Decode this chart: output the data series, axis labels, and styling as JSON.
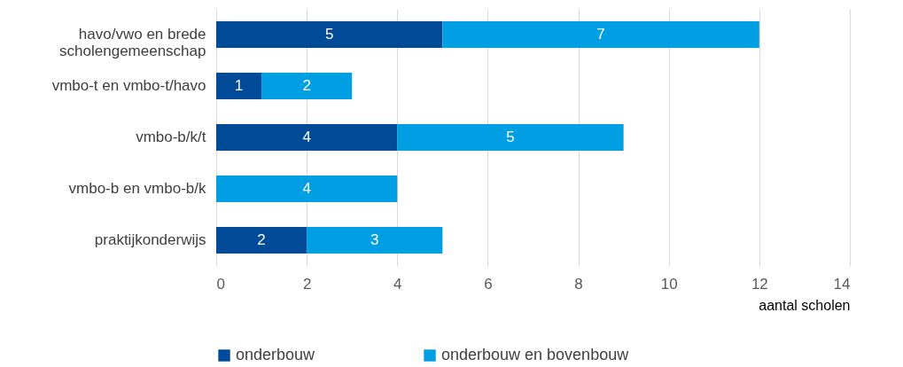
{
  "chart_data": {
    "type": "bar",
    "orientation": "horizontal",
    "stacked": true,
    "categories": [
      "havo/vwo en brede scholengemeenschap",
      "vmbo-t en vmbo-t/havo",
      "vmbo-b/k/t",
      "vmbo-b en vmbo-b/k",
      "praktijkonderwijs"
    ],
    "series": [
      {
        "name": "onderbouw",
        "color": "#004a98",
        "values": [
          5,
          1,
          4,
          null,
          2
        ]
      },
      {
        "name": "onderbouw en bovenbouw",
        "color": "#009fe3",
        "values": [
          7,
          2,
          5,
          4,
          3
        ]
      }
    ],
    "xlim": [
      0,
      14
    ],
    "xticks": [
      0,
      2,
      4,
      6,
      8,
      10,
      12,
      14
    ],
    "xlabel": "aantal scholen",
    "grid": "x",
    "legend": "bottom",
    "data_labels": true
  }
}
